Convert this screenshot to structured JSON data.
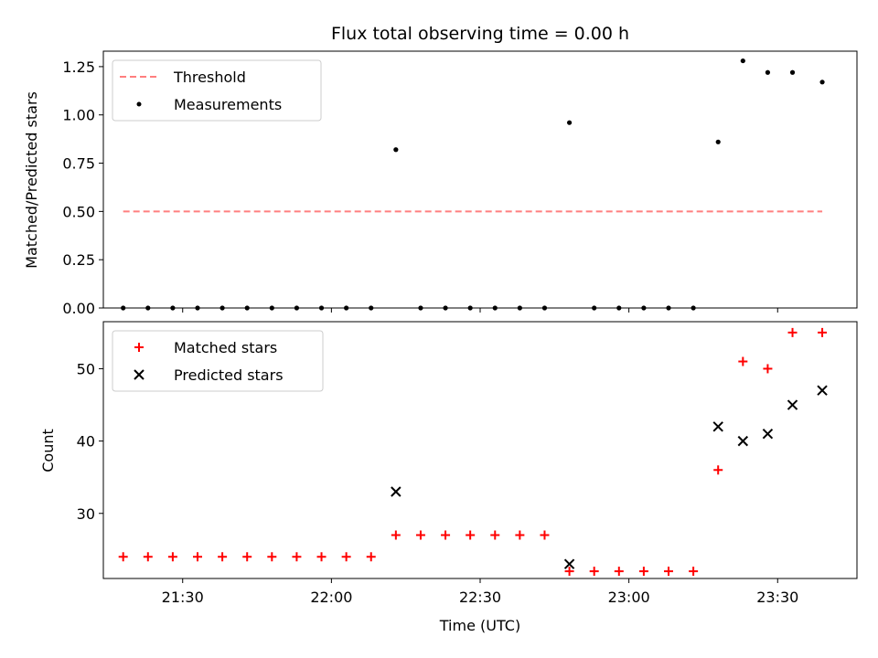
{
  "chart_data": [
    {
      "type": "scatter",
      "title": "Flux total observing time = 0.00 h",
      "xlabel": "",
      "ylabel": "Matched/Predicted stars",
      "ylim": [
        0,
        1.33
      ],
      "yticks": [
        "0.00",
        "0.25",
        "0.50",
        "0.75",
        "1.00",
        "1.25"
      ],
      "xlim": [
        "21:14",
        "23:46"
      ],
      "threshold": {
        "name": "Threshold",
        "value": 0.5,
        "x_start": "21:18",
        "x_end": "23:39",
        "color": "#ff7f7f"
      },
      "series": [
        {
          "name": "Measurements",
          "color": "#000000",
          "x": [
            "21:18",
            "21:23",
            "21:28",
            "21:33",
            "21:38",
            "21:43",
            "21:48",
            "21:53",
            "21:58",
            "22:03",
            "22:08",
            "22:13",
            "22:18",
            "22:23",
            "22:28",
            "22:33",
            "22:38",
            "22:43",
            "22:48",
            "22:53",
            "22:58",
            "23:03",
            "23:08",
            "23:13",
            "23:18",
            "23:23",
            "23:28",
            "23:33",
            "23:39"
          ],
          "y": [
            0,
            0,
            0,
            0,
            0,
            0,
            0,
            0,
            0,
            0,
            0,
            0.82,
            0,
            0,
            0,
            0,
            0,
            0,
            0.96,
            0,
            0,
            0,
            0,
            0,
            0.86,
            1.28,
            1.22,
            1.22,
            1.17
          ]
        }
      ],
      "legend_position": "top-left"
    },
    {
      "type": "scatter",
      "xlabel": "Time (UTC)",
      "ylabel": "Count",
      "ylim": [
        21,
        56.5
      ],
      "yticks": [
        "30",
        "40",
        "50"
      ],
      "xlim": [
        "21:14",
        "23:46"
      ],
      "xticks": [
        "21:30",
        "22:00",
        "22:30",
        "23:00",
        "23:30"
      ],
      "series": [
        {
          "name": "Matched stars",
          "marker": "plus",
          "color": "#ff0000",
          "x": [
            "21:18",
            "21:23",
            "21:28",
            "21:33",
            "21:38",
            "21:43",
            "21:48",
            "21:53",
            "21:58",
            "22:03",
            "22:08",
            "22:13",
            "22:18",
            "22:23",
            "22:28",
            "22:33",
            "22:38",
            "22:43",
            "22:48",
            "22:53",
            "22:58",
            "23:03",
            "23:08",
            "23:13",
            "23:18",
            "23:23",
            "23:28",
            "23:33",
            "23:39"
          ],
          "y": [
            24,
            24,
            24,
            24,
            24,
            24,
            24,
            24,
            24,
            24,
            24,
            27,
            27,
            27,
            27,
            27,
            27,
            27,
            22,
            22,
            22,
            22,
            22,
            22,
            36,
            51,
            50,
            55,
            55
          ]
        },
        {
          "name": "Predicted stars",
          "marker": "x",
          "color": "#000000",
          "x": [
            "22:13",
            "22:48",
            "23:18",
            "23:23",
            "23:28",
            "23:33",
            "23:39"
          ],
          "y": [
            33,
            23,
            42,
            40,
            41,
            45,
            47
          ]
        }
      ],
      "legend_position": "top-left"
    }
  ]
}
